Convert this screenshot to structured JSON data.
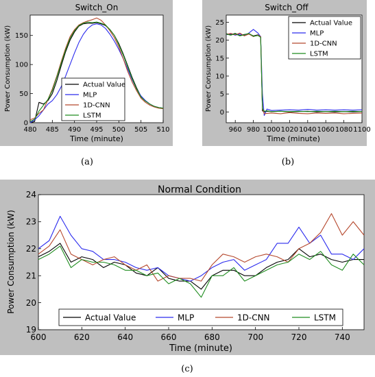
{
  "figure": {
    "captions": [
      "(a)",
      "(b)",
      "(c)"
    ]
  },
  "colors": {
    "panel_bg": "#bfbfbf",
    "plot_bg": "#ffffff",
    "actual": "#000000",
    "mlp": "#2a2aee",
    "cnn": "#b5472c",
    "lstm": "#1e8c1e"
  },
  "chart_data": [
    {
      "type": "line",
      "title": "Switch_On",
      "xlabel": "Time (minute)",
      "ylabel": "Power Consumption (kW)",
      "xlim": [
        480,
        510
      ],
      "ylim": [
        0,
        185
      ],
      "xticks": [
        480,
        485,
        490,
        495,
        500,
        505,
        510
      ],
      "yticks": [
        0,
        50,
        100,
        150
      ],
      "grid": false,
      "legend_position": "lower-center",
      "series": [
        {
          "name": "Actual Value",
          "color_key": "actual",
          "x": [
            480,
            481,
            482,
            483,
            484,
            485,
            486,
            487,
            488,
            489,
            490,
            491,
            492,
            493,
            494,
            495,
            496,
            497,
            498,
            499,
            500,
            501,
            502,
            503,
            504,
            505,
            506,
            507,
            508,
            509,
            510
          ],
          "y": [
            0,
            2,
            35,
            32,
            38,
            50,
            72,
            98,
            122,
            142,
            156,
            166,
            170,
            171,
            171,
            172,
            170,
            167,
            160,
            150,
            136,
            118,
            98,
            78,
            60,
            45,
            38,
            32,
            28,
            26,
            25
          ]
        },
        {
          "name": "MLP",
          "color_key": "mlp",
          "x": [
            480,
            481,
            482,
            483,
            484,
            485,
            486,
            487,
            488,
            489,
            490,
            491,
            492,
            493,
            494,
            495,
            496,
            497,
            498,
            499,
            500,
            501,
            502,
            503,
            504,
            505,
            506,
            507,
            508,
            509,
            510
          ],
          "y": [
            0,
            5,
            12,
            22,
            32,
            38,
            48,
            62,
            80,
            100,
            120,
            138,
            152,
            162,
            168,
            170,
            168,
            162,
            152,
            140,
            126,
            110,
            92,
            74,
            58,
            46,
            38,
            32,
            28,
            26,
            25
          ]
        },
        {
          "name": "1D-CNN",
          "color_key": "cnn",
          "x": [
            480,
            481,
            482,
            483,
            484,
            485,
            486,
            487,
            488,
            489,
            490,
            491,
            492,
            493,
            494,
            495,
            496,
            497,
            498,
            499,
            500,
            501,
            502,
            503,
            504,
            505,
            506,
            507,
            508,
            509,
            510
          ],
          "y": [
            5,
            8,
            16,
            22,
            40,
            58,
            80,
            105,
            128,
            148,
            160,
            168,
            172,
            175,
            177,
            180,
            176,
            168,
            158,
            146,
            130,
            110,
            88,
            70,
            55,
            42,
            35,
            30,
            27,
            25,
            24
          ]
        },
        {
          "name": "LSTM",
          "color_key": "lstm",
          "x": [
            480,
            481,
            482,
            483,
            484,
            485,
            486,
            487,
            488,
            489,
            490,
            491,
            492,
            493,
            494,
            495,
            496,
            497,
            498,
            499,
            500,
            501,
            502,
            503,
            504,
            505,
            506,
            507,
            508,
            509,
            510
          ],
          "y": [
            2,
            6,
            20,
            30,
            40,
            55,
            78,
            102,
            125,
            145,
            158,
            167,
            171,
            173,
            172,
            173,
            171,
            168,
            160,
            150,
            134,
            116,
            96,
            76,
            58,
            44,
            37,
            32,
            28,
            26,
            25
          ]
        }
      ]
    },
    {
      "type": "line",
      "title": "Switch_Off",
      "xlabel": "Time (minute)",
      "ylabel": "Power Consumption (kW)",
      "xlim": [
        950,
        1100
      ],
      "ylim": [
        -3,
        27
      ],
      "xticks": [
        960,
        980,
        1000,
        1020,
        1040,
        1060,
        1080,
        1100
      ],
      "yticks": [
        0,
        5,
        10,
        15,
        20,
        25
      ],
      "grid": false,
      "legend_position": "top-right",
      "series": [
        {
          "name": "Actual Value",
          "color_key": "actual",
          "x": [
            950,
            955,
            960,
            965,
            970,
            975,
            980,
            985,
            988,
            990,
            992,
            995,
            1000,
            1010,
            1020,
            1030,
            1040,
            1050,
            1060,
            1070,
            1080,
            1090,
            1100
          ],
          "y": [
            21.8,
            21.5,
            21.9,
            21.3,
            21.6,
            21.8,
            21.2,
            21.5,
            21.0,
            0.3,
            0.0,
            0.2,
            0.1,
            0.2,
            0.0,
            0.1,
            0.2,
            0.0,
            0.1,
            0.0,
            0.1,
            0.0,
            0.1
          ]
        },
        {
          "name": "MLP",
          "color_key": "mlp",
          "x": [
            950,
            955,
            960,
            965,
            970,
            975,
            980,
            985,
            988,
            990,
            992,
            995,
            1000,
            1010,
            1020,
            1030,
            1040,
            1050,
            1060,
            1070,
            1080,
            1090,
            1100
          ],
          "y": [
            21.5,
            21.8,
            21.4,
            21.7,
            21.3,
            22.0,
            23.0,
            22.0,
            21.0,
            5.0,
            -1.0,
            0.8,
            0.4,
            0.5,
            0.6,
            0.5,
            0.7,
            0.5,
            0.6,
            0.5,
            0.6,
            0.5,
            0.6
          ]
        },
        {
          "name": "1D-CNN",
          "color_key": "cnn",
          "x": [
            950,
            955,
            960,
            965,
            970,
            975,
            980,
            985,
            988,
            990,
            992,
            995,
            1000,
            1010,
            1020,
            1030,
            1040,
            1050,
            1060,
            1070,
            1080,
            1090,
            1100
          ],
          "y": [
            21.6,
            21.9,
            21.5,
            22.0,
            21.2,
            21.7,
            21.0,
            21.4,
            21.0,
            1.0,
            -0.5,
            -0.4,
            -0.3,
            -0.5,
            -0.2,
            -0.4,
            -0.5,
            -0.3,
            -0.4,
            -0.3,
            -0.5,
            -0.4,
            -0.3
          ]
        },
        {
          "name": "LSTM",
          "color_key": "lstm",
          "x": [
            950,
            955,
            960,
            965,
            970,
            975,
            980,
            985,
            988,
            990,
            992,
            995,
            1000,
            1010,
            1020,
            1030,
            1040,
            1050,
            1060,
            1070,
            1080,
            1090,
            1100
          ],
          "y": [
            21.7,
            21.4,
            21.8,
            21.2,
            21.5,
            21.9,
            21.1,
            21.3,
            20.8,
            1.0,
            0.2,
            0.3,
            0.1,
            0.2,
            0.1,
            0.2,
            0.1,
            0.2,
            0.1,
            0.2,
            0.1,
            0.2,
            0.1
          ]
        }
      ]
    },
    {
      "type": "line",
      "title": "Normal Condition",
      "xlabel": "Time (minute)",
      "ylabel": "Power Consumption (kW)",
      "xlim": [
        600,
        750
      ],
      "ylim": [
        19,
        24
      ],
      "xticks": [
        600,
        620,
        640,
        660,
        680,
        700,
        720,
        740
      ],
      "yticks": [
        19,
        20,
        21,
        22,
        23,
        24
      ],
      "grid": false,
      "legend_position": "bottom",
      "series": [
        {
          "name": "Actual Value",
          "color_key": "actual",
          "x": [
            600,
            605,
            610,
            615,
            620,
            625,
            630,
            635,
            640,
            645,
            650,
            655,
            660,
            665,
            670,
            675,
            680,
            685,
            690,
            695,
            700,
            705,
            710,
            715,
            720,
            725,
            730,
            735,
            740,
            745,
            750
          ],
          "y": [
            21.7,
            21.9,
            22.2,
            21.5,
            21.7,
            21.6,
            21.3,
            21.5,
            21.4,
            21.1,
            21.0,
            21.3,
            20.9,
            20.8,
            20.8,
            20.5,
            21.0,
            21.2,
            21.2,
            21.0,
            21.0,
            21.3,
            21.5,
            21.6,
            22.0,
            21.7,
            21.8,
            21.6,
            21.5,
            21.6,
            21.6
          ]
        },
        {
          "name": "MLP",
          "color_key": "mlp",
          "x": [
            600,
            605,
            610,
            615,
            620,
            625,
            630,
            635,
            640,
            645,
            650,
            655,
            660,
            665,
            670,
            675,
            680,
            685,
            690,
            695,
            700,
            705,
            710,
            715,
            720,
            725,
            730,
            735,
            740,
            745,
            750
          ],
          "y": [
            22.0,
            22.3,
            23.2,
            22.5,
            22.0,
            21.9,
            21.6,
            21.6,
            21.5,
            21.3,
            21.2,
            21.3,
            21.0,
            20.9,
            20.8,
            21.0,
            21.3,
            21.5,
            21.6,
            21.2,
            21.4,
            21.6,
            22.2,
            22.2,
            22.8,
            22.2,
            22.5,
            21.8,
            21.8,
            21.6,
            22.0
          ]
        },
        {
          "name": "1D-CNN",
          "color_key": "cnn",
          "x": [
            600,
            605,
            610,
            615,
            620,
            625,
            630,
            635,
            640,
            645,
            650,
            655,
            660,
            665,
            670,
            675,
            680,
            685,
            690,
            695,
            700,
            705,
            710,
            715,
            720,
            725,
            730,
            735,
            740,
            745,
            750
          ],
          "y": [
            21.8,
            22.1,
            22.7,
            21.8,
            21.6,
            21.4,
            21.6,
            21.7,
            21.4,
            21.2,
            21.4,
            20.8,
            21.0,
            20.9,
            20.9,
            20.8,
            21.4,
            21.8,
            21.7,
            21.5,
            21.7,
            21.8,
            21.7,
            21.5,
            22.0,
            22.2,
            22.6,
            23.3,
            22.5,
            23.0,
            22.5
          ]
        },
        {
          "name": "LSTM",
          "color_key": "lstm",
          "x": [
            600,
            605,
            610,
            615,
            620,
            625,
            630,
            635,
            640,
            645,
            650,
            655,
            660,
            665,
            670,
            675,
            680,
            685,
            690,
            695,
            700,
            705,
            710,
            715,
            720,
            725,
            730,
            735,
            740,
            745,
            750
          ],
          "y": [
            21.6,
            21.8,
            22.1,
            21.3,
            21.6,
            21.5,
            21.5,
            21.4,
            21.2,
            21.2,
            21.0,
            21.1,
            20.7,
            20.9,
            20.7,
            20.2,
            21.0,
            21.0,
            21.3,
            20.8,
            21.0,
            21.2,
            21.4,
            21.5,
            21.8,
            21.6,
            21.9,
            21.4,
            21.2,
            21.8,
            21.4
          ]
        }
      ]
    }
  ]
}
